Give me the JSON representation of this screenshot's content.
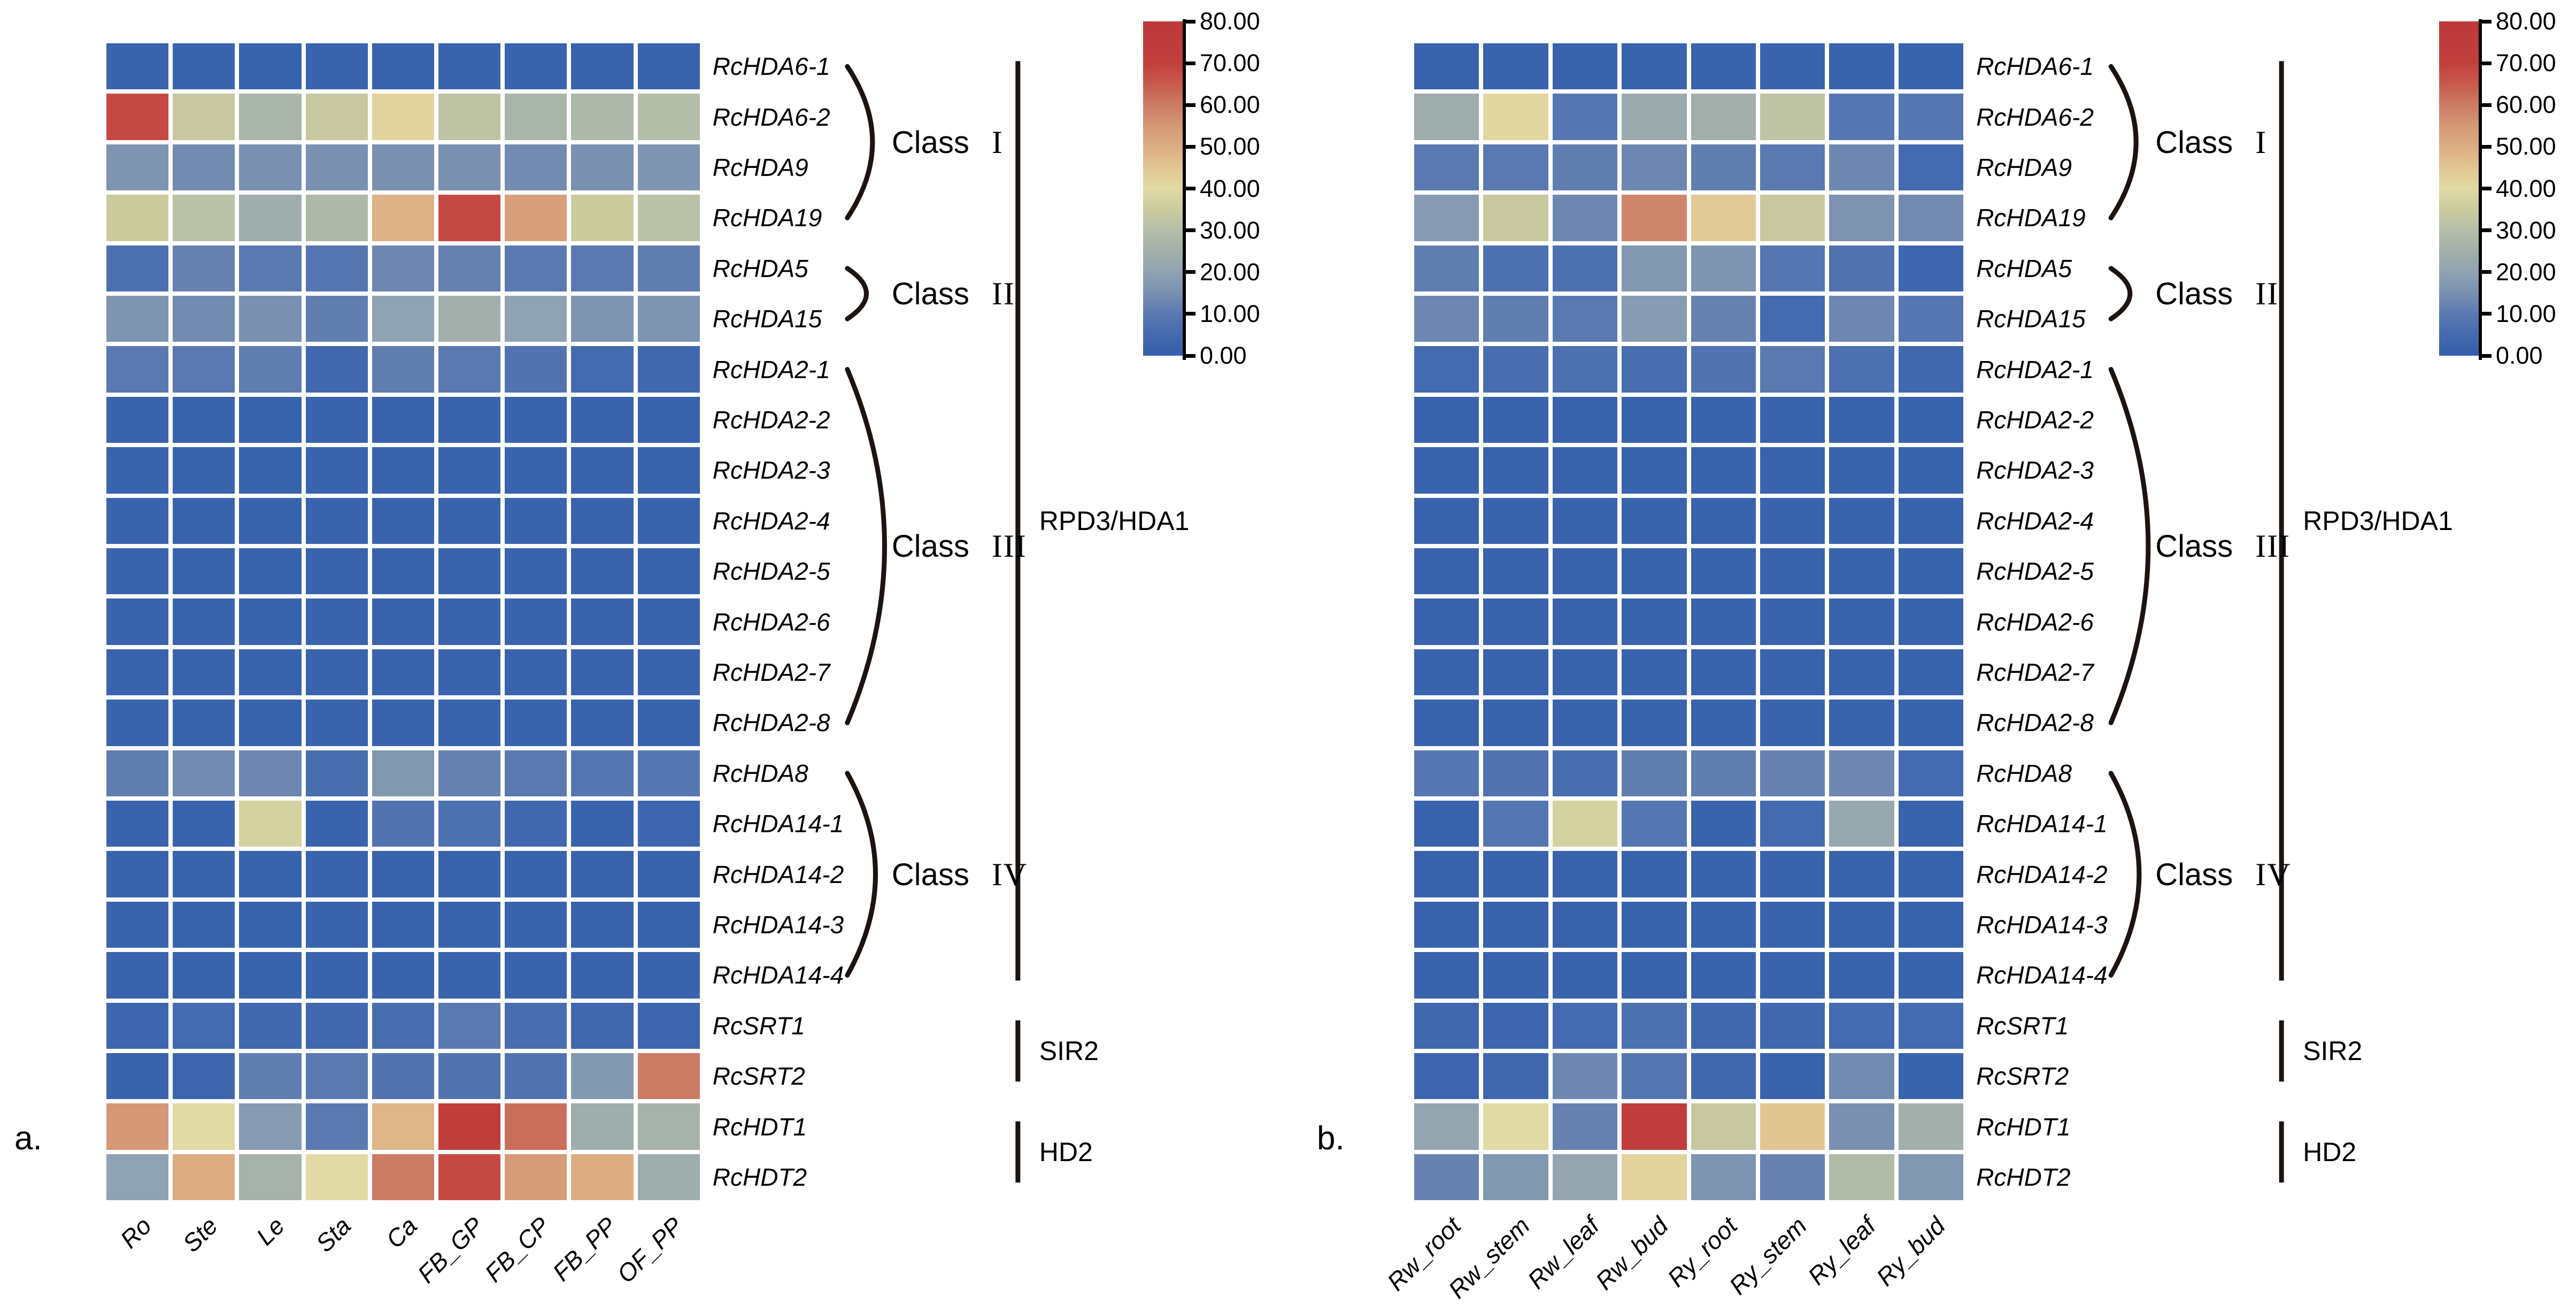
{
  "figure": {
    "background": "#FFFFFF"
  },
  "chart_data": [
    {
      "type": "heatmap",
      "label": "a.",
      "value_range": [
        0,
        80
      ],
      "genes": [
        "RcHDA6-1",
        "RcHDA6-2",
        "RcHDA9",
        "RcHDA19",
        "RcHDA5",
        "RcHDA15",
        "RcHDA2-1",
        "RcHDA2-2",
        "RcHDA2-3",
        "RcHDA2-4",
        "RcHDA2-5",
        "RcHDA2-6",
        "RcHDA2-7",
        "RcHDA2-8",
        "RcHDA8",
        "RcHDA14-1",
        "RcHDA14-2",
        "RcHDA14-3",
        "RcHDA14-4",
        "RcSRT1",
        "RcSRT2",
        "RcHDT1",
        "RcHDT2"
      ],
      "tissues": [
        "Ro",
        "Ste",
        "Le",
        "Sta",
        "Ca",
        "FB_GP",
        "FB_CP",
        "FB_PP",
        "OF_PP"
      ],
      "values": [
        [
          2,
          2,
          2,
          2,
          2,
          2,
          2,
          2,
          2
        ],
        [
          68,
          34,
          27,
          34,
          42,
          32,
          27,
          28,
          30
        ],
        [
          16,
          14,
          15,
          15,
          15,
          15,
          14,
          15,
          16
        ],
        [
          35,
          31,
          24,
          28,
          49,
          68,
          53,
          35,
          31
        ],
        [
          7,
          12,
          10,
          9,
          13,
          12,
          10,
          10,
          11
        ],
        [
          16,
          14,
          15,
          11,
          20,
          25,
          20,
          16,
          16
        ],
        [
          10,
          10,
          11,
          4,
          11,
          10,
          8,
          5,
          4
        ],
        [
          2,
          2,
          2,
          2,
          2,
          2,
          2,
          2,
          2
        ],
        [
          2,
          2,
          2,
          2,
          2,
          2,
          2,
          2,
          2
        ],
        [
          2,
          2,
          2,
          2,
          2,
          2,
          2,
          2,
          2
        ],
        [
          2,
          2,
          2,
          2,
          2,
          2,
          2,
          2,
          2
        ],
        [
          2,
          2,
          2,
          2,
          2,
          2,
          2,
          2,
          2
        ],
        [
          2,
          2,
          2,
          2,
          2,
          2,
          2,
          2,
          2
        ],
        [
          2,
          2,
          2,
          2,
          2,
          2,
          2,
          2,
          2
        ],
        [
          11,
          14,
          13,
          6,
          17,
          12,
          10,
          9,
          9
        ],
        [
          2,
          2,
          37,
          2,
          8,
          7,
          4,
          2,
          3
        ],
        [
          2,
          2,
          2,
          2,
          2,
          2,
          2,
          2,
          2
        ],
        [
          2,
          2,
          2,
          2,
          2,
          2,
          2,
          2,
          2
        ],
        [
          2,
          2,
          2,
          2,
          2,
          2,
          2,
          2,
          2
        ],
        [
          3,
          5,
          4,
          4,
          6,
          10,
          6,
          4,
          3
        ],
        [
          2,
          3,
          11,
          10,
          8,
          8,
          8,
          17,
          60
        ],
        [
          55,
          40,
          18,
          10,
          48,
          72,
          62,
          24,
          26
        ],
        [
          20,
          50,
          26,
          40,
          60,
          68,
          54,
          50,
          24
        ]
      ]
    },
    {
      "type": "heatmap",
      "label": "b.",
      "value_range": [
        0,
        80
      ],
      "genes": [
        "RcHDA6-1",
        "RcHDA6-2",
        "RcHDA9",
        "RcHDA19",
        "RcHDA5",
        "RcHDA15",
        "RcHDA2-1",
        "RcHDA2-2",
        "RcHDA2-3",
        "RcHDA2-4",
        "RcHDA2-5",
        "RcHDA2-6",
        "RcHDA2-7",
        "RcHDA2-8",
        "RcHDA8",
        "RcHDA14-1",
        "RcHDA14-2",
        "RcHDA14-3",
        "RcHDA14-4",
        "RcSRT1",
        "RcSRT2",
        "RcHDT1",
        "RcHDT2"
      ],
      "tissues": [
        "Rw_root",
        "Rw_stem",
        "Rw_leaf",
        "Rw_bud",
        "Ry_root",
        "Ry_stem",
        "Ry_leaf",
        "Ry_bud"
      ],
      "values": [
        [
          2,
          2,
          2,
          2,
          2,
          2,
          2,
          2
        ],
        [
          24,
          41,
          9,
          23,
          25,
          32,
          9,
          9
        ],
        [
          10,
          10,
          11,
          13,
          11,
          10,
          13,
          5
        ],
        [
          18,
          34,
          13,
          58,
          44,
          34,
          16,
          14
        ],
        [
          11,
          7,
          7,
          17,
          16,
          9,
          8,
          3
        ],
        [
          13,
          11,
          10,
          18,
          12,
          5,
          13,
          9
        ],
        [
          5,
          6,
          7,
          6,
          8,
          10,
          7,
          4
        ],
        [
          2,
          2,
          2,
          2,
          2,
          2,
          2,
          2
        ],
        [
          2,
          2,
          2,
          2,
          2,
          2,
          2,
          2
        ],
        [
          2,
          2,
          2,
          2,
          2,
          2,
          2,
          2
        ],
        [
          2,
          2,
          2,
          2,
          2,
          2,
          2,
          2
        ],
        [
          2,
          2,
          2,
          2,
          2,
          2,
          2,
          2
        ],
        [
          2,
          2,
          2,
          2,
          2,
          2,
          2,
          2
        ],
        [
          2,
          2,
          2,
          2,
          2,
          2,
          2,
          2
        ],
        [
          9,
          8,
          6,
          11,
          11,
          12,
          13,
          5
        ],
        [
          2,
          9,
          37,
          9,
          2,
          5,
          22,
          2
        ],
        [
          2,
          2,
          2,
          2,
          2,
          2,
          2,
          2
        ],
        [
          2,
          2,
          2,
          2,
          2,
          2,
          2,
          2
        ],
        [
          2,
          2,
          2,
          2,
          2,
          2,
          2,
          2
        ],
        [
          4,
          3,
          5,
          7,
          4,
          4,
          5,
          5
        ],
        [
          3,
          4,
          13,
          9,
          4,
          2,
          14,
          2
        ],
        [
          21,
          40,
          12,
          73,
          34,
          45,
          15,
          25
        ],
        [
          12,
          17,
          21,
          42,
          16,
          12,
          29,
          17
        ]
      ]
    }
  ],
  "annotations": {
    "classes": [
      {
        "word": "Class",
        "numeral": "I",
        "row_start": 0,
        "row_end": 3
      },
      {
        "word": "Class",
        "numeral": "II",
        "row_start": 4,
        "row_end": 5
      },
      {
        "word": "Class",
        "numeral": "III",
        "row_start": 6,
        "row_end": 13
      },
      {
        "word": "Class",
        "numeral": "IV",
        "row_start": 14,
        "row_end": 18
      }
    ],
    "families": [
      {
        "label": "RPD3/HDA1",
        "row_start": 0,
        "row_end": 18
      },
      {
        "label": "SIR2",
        "row_start": 19,
        "row_end": 20
      },
      {
        "label": "HD2",
        "row_start": 21,
        "row_end": 22
      }
    ]
  },
  "colorbar": {
    "min": 0,
    "max": 80,
    "tick_labels": [
      "80.00",
      "70.00",
      "60.00",
      "50.00",
      "40.00",
      "30.00",
      "20.00",
      "10.00",
      "0.00"
    ]
  },
  "colormap": {
    "stops": [
      [
        0,
        "#335EAC"
      ],
      [
        5,
        "#446BAF"
      ],
      [
        10,
        "#5B79B1"
      ],
      [
        15,
        "#7990B1"
      ],
      [
        20,
        "#90A3B2"
      ],
      [
        25,
        "#A3AFAA"
      ],
      [
        30,
        "#B5BEA8"
      ],
      [
        35,
        "#CBCB9D"
      ],
      [
        40,
        "#E2DAA4"
      ],
      [
        45,
        "#E2C692"
      ],
      [
        50,
        "#DCAD83"
      ],
      [
        55,
        "#D49875"
      ],
      [
        60,
        "#CC7C64"
      ],
      [
        65,
        "#C85A4D"
      ],
      [
        70,
        "#C33F3C"
      ],
      [
        75,
        "#BF3A3C"
      ],
      [
        80,
        "#BD383B"
      ]
    ]
  }
}
